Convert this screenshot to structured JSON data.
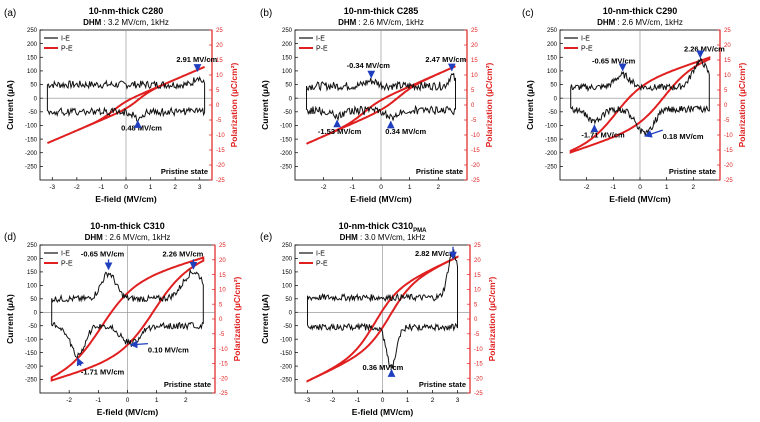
{
  "colors": {
    "ie": "#111111",
    "pe": "#e02020",
    "arrow": "#1f3fbf",
    "axis": "#000000",
    "right_axis": "#e02020"
  },
  "chart_data": [
    {
      "type": "line",
      "panel_label": "(a)",
      "title": "10-nm-thick C280",
      "subtitle": "DHM : 3.2 MV/cm, 1kHz",
      "subtitle_bold": "DHM",
      "subtitle_rest": " : 3.2 MV/cm, 1kHz",
      "xlabel": "E-field (MV/cm)",
      "ylabel": "Current (µA)",
      "y2label": "Polarization (µC/cm²)",
      "xlim": [
        -3.5,
        3.5
      ],
      "ylim": [
        -300,
        250
      ],
      "y2lim": [
        -25,
        25
      ],
      "xticks": [
        -3,
        -2,
        -1,
        0,
        1,
        2,
        3
      ],
      "yticks": [
        -250,
        -200,
        -150,
        -100,
        -50,
        0,
        50,
        100,
        150,
        200,
        250
      ],
      "y2ticks": [
        -25,
        -20,
        -15,
        -10,
        -5,
        0,
        5,
        10,
        15,
        20,
        25
      ],
      "legend": [
        "I-E",
        "P-E"
      ],
      "state_label": "Pristine state",
      "vmax": 3.2,
      "ps": 1.5,
      "ec": 0.5,
      "pc_slope": 3.5,
      "pwidth": 0.5,
      "ie_base": 50,
      "ie_noise": 14,
      "peaks": [
        {
          "branch": "up",
          "e": 2.91,
          "amp": 30,
          "width": 0.18
        },
        {
          "branch": "down",
          "e": 0.48,
          "amp": -22,
          "width": 0.25
        }
      ],
      "annotations": [
        {
          "text": "2.91 MV/cm",
          "x": 2.91,
          "y": 88,
          "label_x": 2.05,
          "label_y": 132
        },
        {
          "text": "0.48 MV/cm",
          "x": 0.48,
          "y": -72,
          "label_x": -0.2,
          "label_y": -118
        }
      ]
    },
    {
      "type": "line",
      "panel_label": "(b)",
      "title": "10-nm-thick C285",
      "subtitle": "DHM : 2.6 MV/cm, 1kHz",
      "subtitle_bold": "DHM",
      "subtitle_rest": " : 2.6 MV/cm, 1kHz",
      "xlabel": "E-field (MV/cm)",
      "ylabel": "Current (µA)",
      "y2label": "Polarization (µC/cm²)",
      "xlim": [
        -3.0,
        3.0
      ],
      "ylim": [
        -300,
        250
      ],
      "y2lim": [
        -25,
        25
      ],
      "xticks": [
        -2,
        -1,
        0,
        1,
        2
      ],
      "yticks": [
        -250,
        -200,
        -150,
        -100,
        -50,
        0,
        50,
        100,
        150,
        200,
        250
      ],
      "y2ticks": [
        -25,
        -20,
        -15,
        -10,
        -5,
        0,
        5,
        10,
        15,
        20,
        25
      ],
      "legend": [
        "I-E",
        "P-E"
      ],
      "state_label": "Pristine state",
      "vmax": 2.6,
      "ps": 2.0,
      "ec": 0.6,
      "pc_slope": 4.2,
      "pwidth": 0.55,
      "ie_base": 45,
      "ie_noise": 15,
      "peaks": [
        {
          "branch": "up",
          "e": 2.47,
          "amp": 38,
          "width": 0.15
        },
        {
          "branch": "up",
          "e": -0.34,
          "amp": 18,
          "width": 0.3
        },
        {
          "branch": "down",
          "e": 0.34,
          "amp": -28,
          "width": 0.22
        },
        {
          "branch": "down",
          "e": -1.53,
          "amp": -18,
          "width": 0.3
        }
      ],
      "annotations": [
        {
          "text": "2.47 MV/cm",
          "x": 2.47,
          "y": 90,
          "label_x": 1.55,
          "label_y": 132
        },
        {
          "text": "-0.34 MV/cm",
          "x": -0.34,
          "y": 64,
          "label_x": -1.2,
          "label_y": 110
        },
        {
          "text": "-1.53 MV/cm",
          "x": -1.53,
          "y": -70,
          "label_x": -2.2,
          "label_y": -132
        },
        {
          "text": "0.34 MV/cm",
          "x": 0.34,
          "y": -74,
          "label_x": 0.15,
          "label_y": -132
        }
      ]
    },
    {
      "type": "line",
      "panel_label": "(c)",
      "title": "10-nm-thick C290",
      "subtitle": "DHM : 2.6 MV/cm, 1kHz",
      "subtitle_bold": "DHM",
      "subtitle_rest": " : 2.6 MV/cm, 1kHz",
      "xlabel": "E-field (MV/cm)",
      "ylabel": "Current (µA)",
      "y2label": "Polarization (µC/cm²)",
      "xlim": [
        -3.0,
        3.0
      ],
      "ylim": [
        -300,
        250
      ],
      "y2lim": [
        -25,
        25
      ],
      "xticks": [
        -2,
        -1,
        0,
        1,
        2
      ],
      "yticks": [
        -250,
        -200,
        -150,
        -100,
        -50,
        0,
        50,
        100,
        150,
        200,
        250
      ],
      "y2ticks": [
        -25,
        -20,
        -15,
        -10,
        -5,
        0,
        5,
        10,
        15,
        20,
        25
      ],
      "legend": [
        "I-E",
        "P-E"
      ],
      "state_label": "Pristine state",
      "vmax": 2.6,
      "ps": 8,
      "ec": 0.9,
      "pc_slope": 3.0,
      "pwidth": 1.0,
      "ie_base": 40,
      "ie_noise": 12,
      "peaks": [
        {
          "branch": "up",
          "e": 2.26,
          "amp": 95,
          "width": 0.4
        },
        {
          "branch": "up",
          "e": -0.65,
          "amp": 45,
          "width": 0.4
        },
        {
          "branch": "down",
          "e": -1.71,
          "amp": -45,
          "width": 0.4
        },
        {
          "branch": "down",
          "e": 0.18,
          "amp": -90,
          "width": 0.45
        }
      ],
      "annotations": [
        {
          "text": "2.26 MV/cm",
          "x": 2.26,
          "y": 138,
          "label_x": 1.65,
          "label_y": 172
        },
        {
          "text": "-0.65 MV/cm",
          "x": -0.65,
          "y": 90,
          "label_x": -1.8,
          "label_y": 128
        },
        {
          "text": "-1.71 MV/cm",
          "x": -1.71,
          "y": -88,
          "label_x": -2.2,
          "label_y": -145
        },
        {
          "text": "0.18 MV/cm",
          "x": 0.18,
          "y": -128,
          "label_x": 0.85,
          "label_y": -150
        }
      ]
    },
    {
      "type": "line",
      "panel_label": "(d)",
      "title": "10-nm-thick C310",
      "subtitle": "DHM : 2.6 MV/cm, 1kHz",
      "subtitle_bold": "DHM",
      "subtitle_rest": " : 2.6 MV/cm, 1kHz",
      "xlabel": "E-field (MV/cm)",
      "ylabel": "Current (µA)",
      "y2label": "Polarization (µC/cm²)",
      "xlim": [
        -3.0,
        3.0
      ],
      "ylim": [
        -300,
        250
      ],
      "y2lim": [
        -25,
        25
      ],
      "xticks": [
        -2,
        -1,
        0,
        1,
        2
      ],
      "yticks": [
        -250,
        -200,
        -150,
        -100,
        -50,
        0,
        50,
        100,
        150,
        200,
        250
      ],
      "y2ticks": [
        -25,
        -20,
        -15,
        -10,
        -5,
        0,
        5,
        10,
        15,
        20,
        25
      ],
      "legend": [
        "I-E",
        "P-E"
      ],
      "state_label": "Pristine state",
      "vmax": 2.6,
      "ps": 13,
      "ec": 0.9,
      "pc_slope": 3.0,
      "pwidth": 1.1,
      "ie_base": 50,
      "ie_noise": 12,
      "peaks": [
        {
          "branch": "up",
          "e": 2.26,
          "amp": 100,
          "width": 0.5
        },
        {
          "branch": "up",
          "e": -0.65,
          "amp": 95,
          "width": 0.35
        },
        {
          "branch": "down",
          "e": -1.71,
          "amp": -110,
          "width": 0.35
        },
        {
          "branch": "down",
          "e": 0.1,
          "amp": -65,
          "width": 0.45
        }
      ],
      "annotations": [
        {
          "text": "2.26 MV/cm",
          "x": 2.26,
          "y": 150,
          "label_x": 1.2,
          "label_y": 208
        },
        {
          "text": "-0.65 MV/cm",
          "x": -0.65,
          "y": 148,
          "label_x": -1.6,
          "label_y": 208
        },
        {
          "text": "-1.71 MV/cm",
          "x": -1.71,
          "y": -160,
          "label_x": -1.6,
          "label_y": -232
        },
        {
          "text": "0.10 MV/cm",
          "x": 0.1,
          "y": -110,
          "label_x": 0.7,
          "label_y": -150
        }
      ]
    },
    {
      "type": "line",
      "panel_label": "(e)",
      "title": "10-nm-thick C310",
      "title_sub": "PMA",
      "subtitle": "DHM : 3.0 MV/cm, 1kHz",
      "subtitle_bold": "DHM",
      "subtitle_rest": " : 3.0 MV/cm, 1kHz",
      "xlabel": "E-field (MV/cm)",
      "ylabel": "Current (µA)",
      "y2label": "Polarization (µC/cm²)",
      "xlim": [
        -3.5,
        3.5
      ],
      "ylim": [
        -300,
        250
      ],
      "y2lim": [
        -25,
        25
      ],
      "xticks": [
        -3,
        -2,
        -1,
        0,
        1,
        2,
        3
      ],
      "yticks": [
        -250,
        -200,
        -150,
        -100,
        -50,
        0,
        50,
        100,
        150,
        200,
        250
      ],
      "y2ticks": [
        -25,
        -20,
        -15,
        -10,
        -5,
        0,
        5,
        10,
        15,
        20,
        25
      ],
      "legend": [
        "I-E",
        "P-E"
      ],
      "state_label": "Pristine state",
      "vmax": 3.0,
      "ps": 9,
      "ec": 0.3,
      "pc_slope": 4.0,
      "pwidth": 0.9,
      "ie_base": 55,
      "ie_noise": 12,
      "peaks": [
        {
          "branch": "up",
          "e": 2.82,
          "amp": 170,
          "width": 0.28
        },
        {
          "branch": "down",
          "e": 0.36,
          "amp": -150,
          "width": 0.28
        }
      ],
      "annotations": [
        {
          "text": "2.82 MV/cm",
          "x": 2.82,
          "y": 210,
          "label_x": 1.3,
          "label_y": 210
        },
        {
          "text": "0.36 MV/cm",
          "x": 0.36,
          "y": -225,
          "label_x": -0.8,
          "label_y": -215
        }
      ]
    }
  ]
}
